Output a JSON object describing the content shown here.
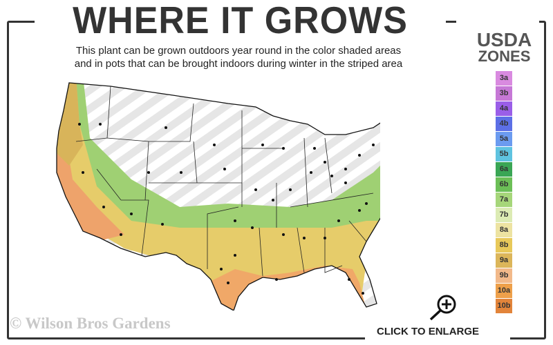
{
  "header": {
    "title": "WHERE IT GROWS",
    "subtitle_line1": "This plant can be grown outdoors year round in the color shaded areas",
    "subtitle_line2": "and in pots that can be brought indoors during winter in the striped area"
  },
  "legend": {
    "title_line1": "USDA",
    "title_line2": "ZONES",
    "zones": [
      {
        "label": "3a",
        "color": "#d98ae0"
      },
      {
        "label": "3b",
        "color": "#c678d6"
      },
      {
        "label": "4a",
        "color": "#9a5ee8"
      },
      {
        "label": "4b",
        "color": "#5c6fe6"
      },
      {
        "label": "5a",
        "color": "#6b9bf0"
      },
      {
        "label": "5b",
        "color": "#5fc3e0"
      },
      {
        "label": "6a",
        "color": "#3aa655"
      },
      {
        "label": "6b",
        "color": "#6cbf57"
      },
      {
        "label": "7a",
        "color": "#a6d67a"
      },
      {
        "label": "7b",
        "color": "#dcebb4"
      },
      {
        "label": "8a",
        "color": "#ede3a2"
      },
      {
        "label": "8b",
        "color": "#e8c95a"
      },
      {
        "label": "9a",
        "color": "#dcb65a"
      },
      {
        "label": "9b",
        "color": "#f2b98a"
      },
      {
        "label": "10a",
        "color": "#eea04a"
      },
      {
        "label": "10b",
        "color": "#e2843a"
      }
    ]
  },
  "footer": {
    "copyright": "© Wilson Bros Gardens",
    "enlarge_label": "CLICK TO ENLARGE",
    "enlarge_icon": "magnifier-plus-icon"
  }
}
